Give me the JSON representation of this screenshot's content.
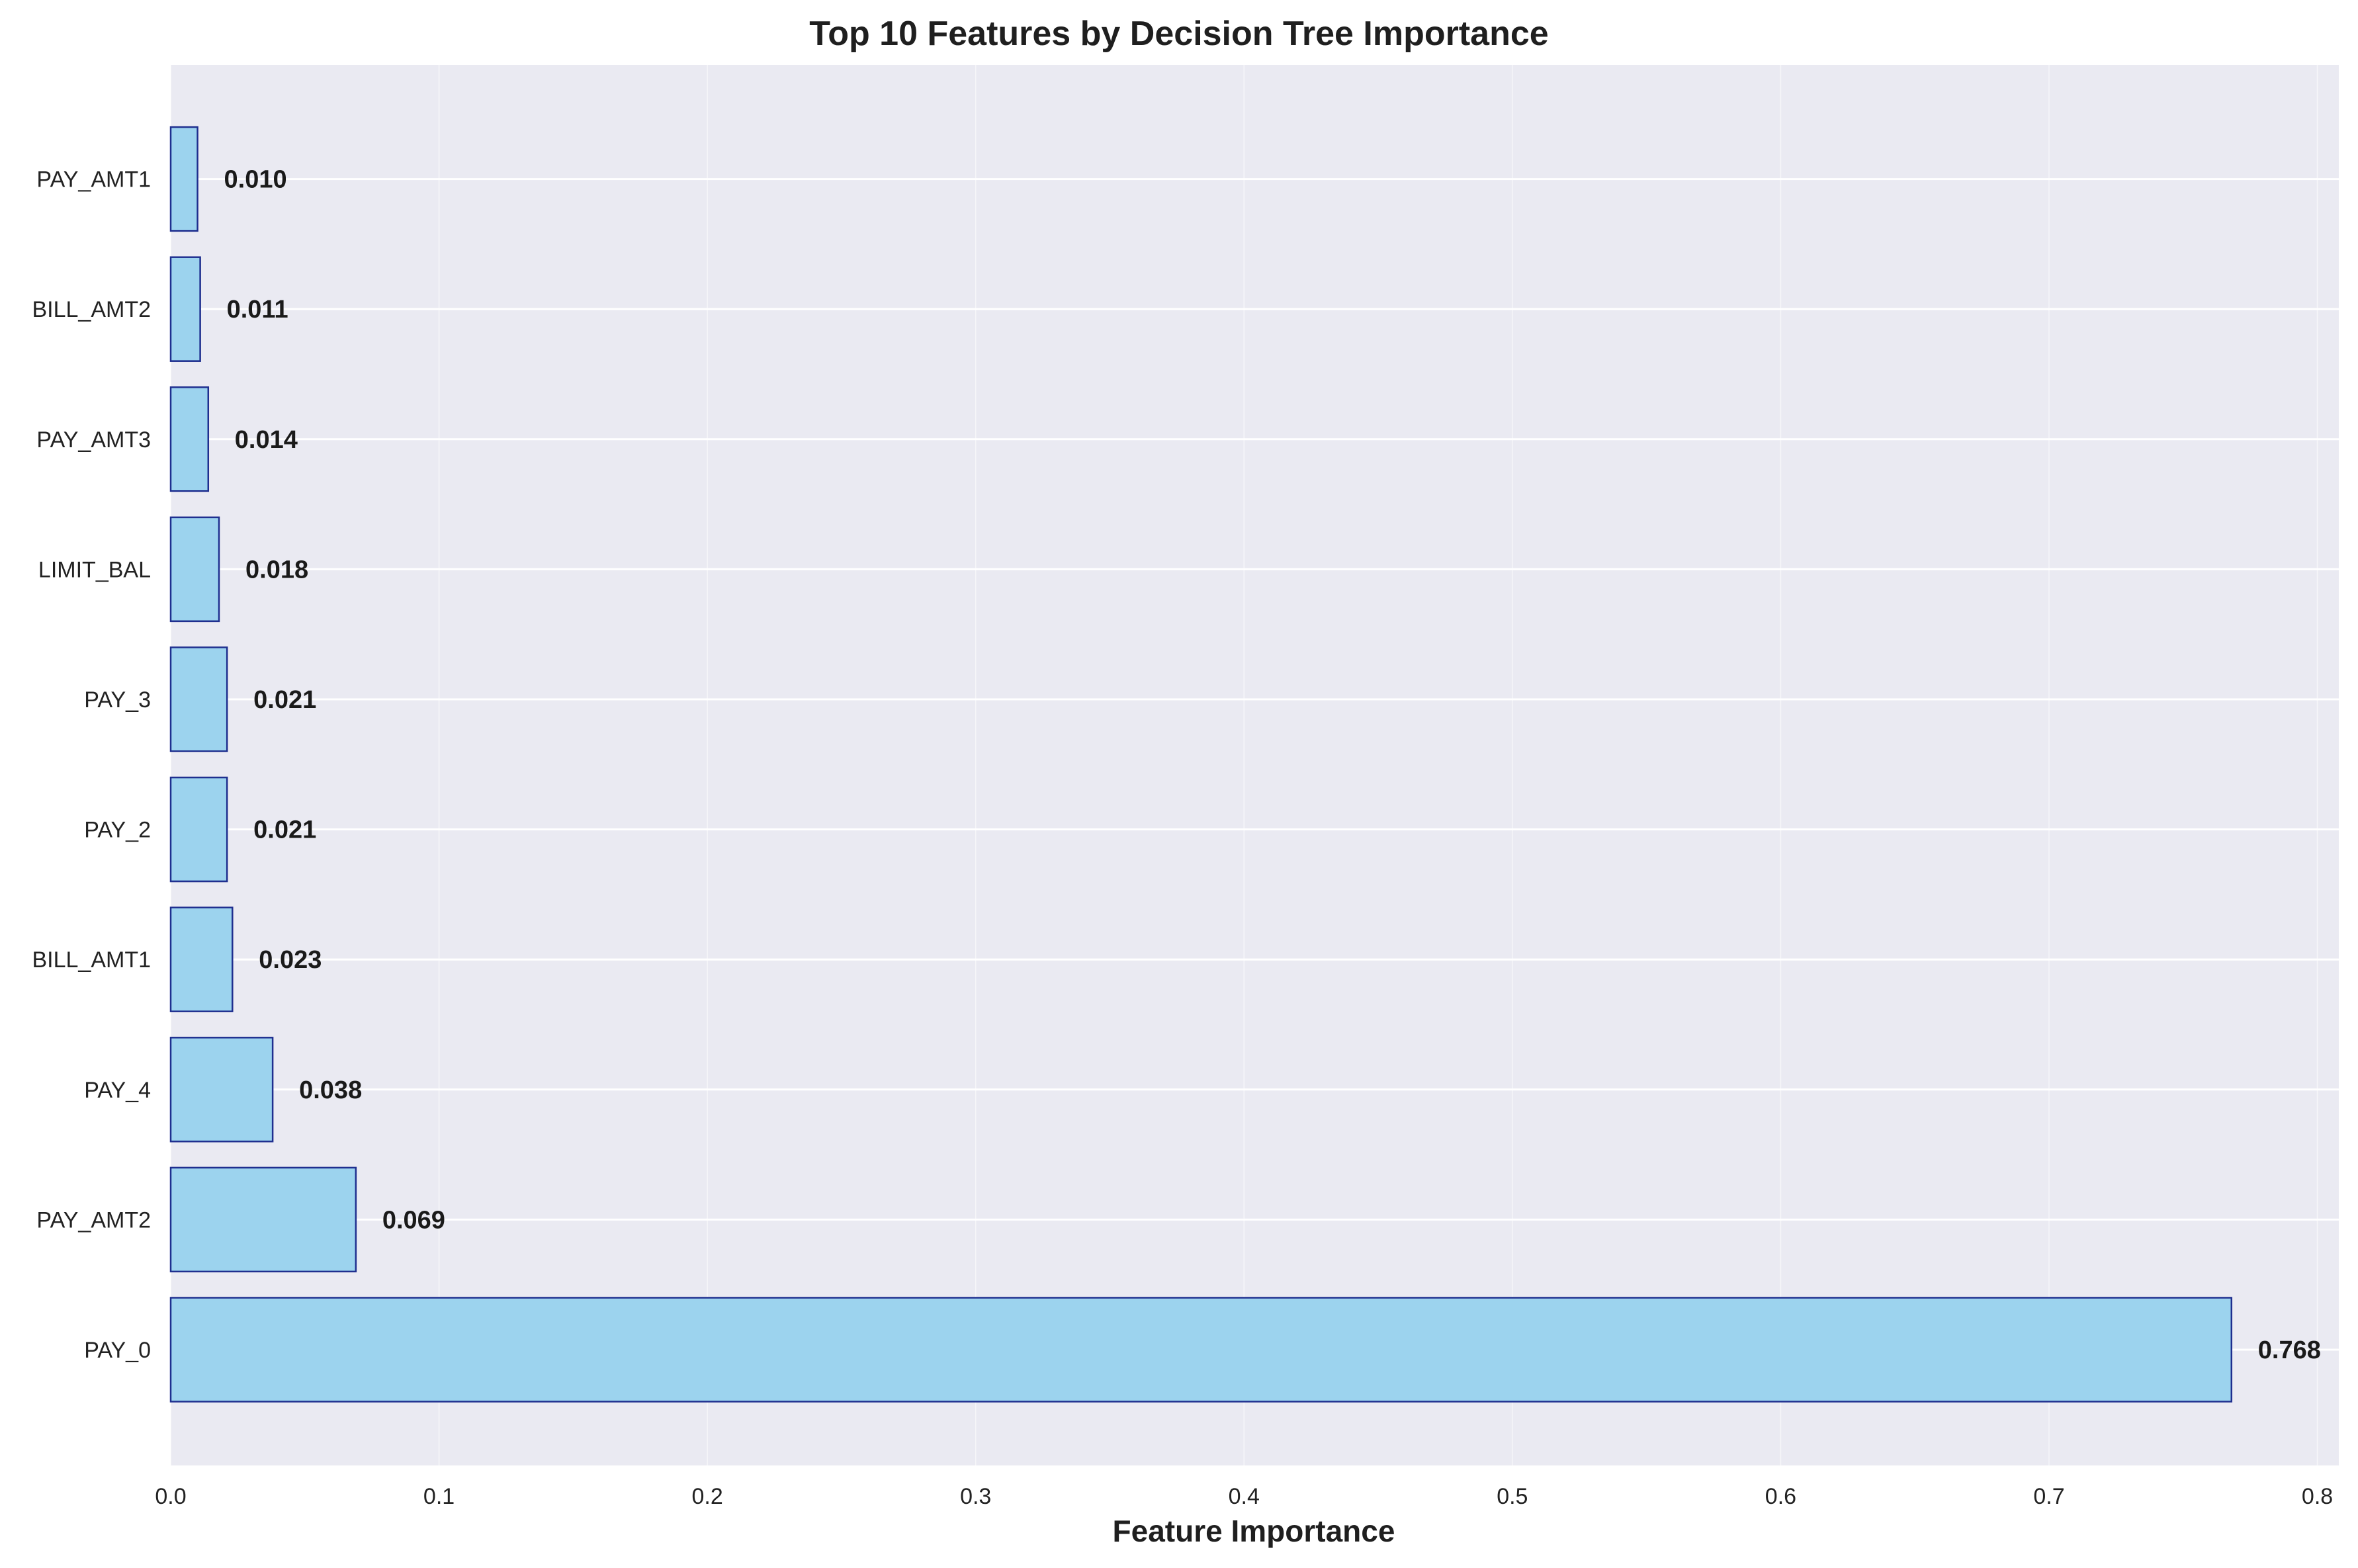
{
  "chart_data": {
    "type": "bar",
    "orientation": "horizontal",
    "title": "Top 10 Features by Decision Tree Importance",
    "xlabel": "Feature Importance",
    "ylabel": "",
    "xlim": [
      0.0,
      0.808
    ],
    "xticks": [
      0.0,
      0.1,
      0.2,
      0.3,
      0.4,
      0.5,
      0.6,
      0.7,
      0.8
    ],
    "xtick_labels": [
      "0.0",
      "0.1",
      "0.2",
      "0.3",
      "0.4",
      "0.5",
      "0.6",
      "0.7",
      "0.8"
    ],
    "categories": [
      "PAY_0",
      "PAY_AMT2",
      "PAY_4",
      "BILL_AMT1",
      "PAY_2",
      "PAY_3",
      "LIMIT_BAL",
      "PAY_AMT3",
      "BILL_AMT2",
      "PAY_AMT1"
    ],
    "values": [
      0.768,
      0.069,
      0.038,
      0.023,
      0.021,
      0.021,
      0.018,
      0.014,
      0.011,
      0.01
    ],
    "value_labels": [
      "0.768",
      "0.069",
      "0.038",
      "0.023",
      "0.021",
      "0.021",
      "0.018",
      "0.014",
      "0.011",
      "0.010"
    ],
    "grid": true,
    "colors": {
      "bar_fill": "#9cd3ee",
      "bar_edge": "#1f2f8f",
      "plot_background": "#eaeaf2",
      "grid": "#ffffff"
    }
  }
}
